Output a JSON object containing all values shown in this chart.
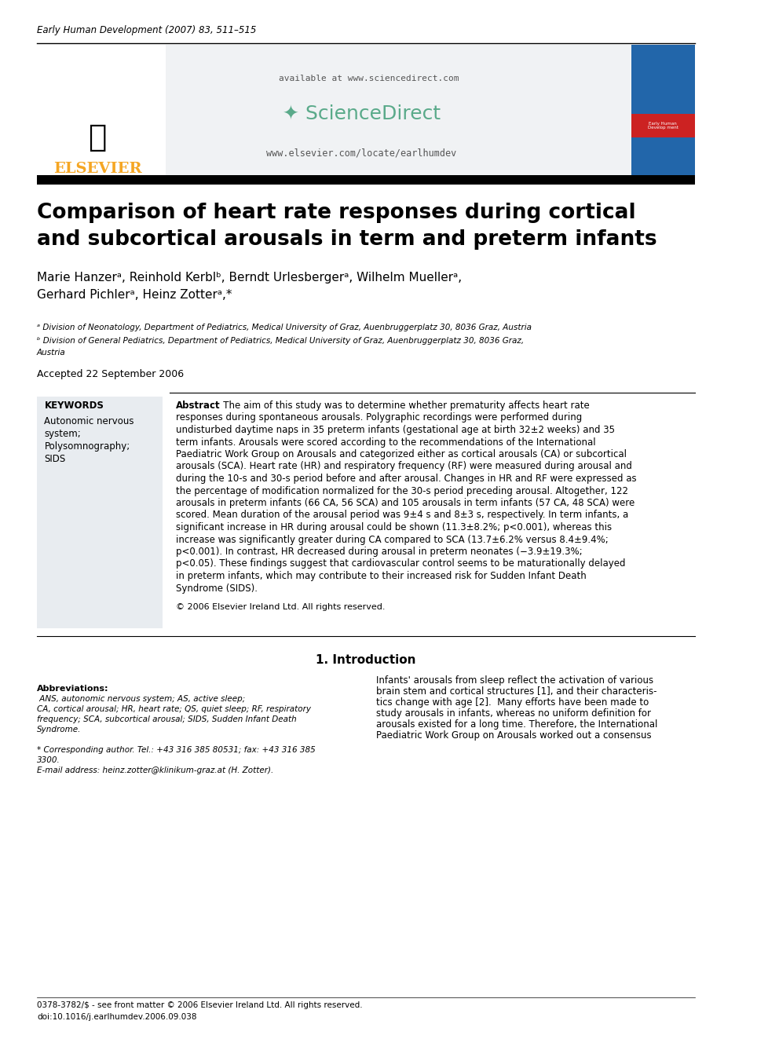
{
  "journal_line": "Early Human Development (2007) 83, 511–515",
  "available_text": "available at www.sciencedirect.com",
  "sciencedirect_text": "ScienceDirect",
  "elsevier_url": "www.elsevier.com/locate/earlhumdev",
  "elsevier_text": "ELSEVIER",
  "title_line1": "Comparison of heart rate responses during cortical",
  "title_line2": "and subcortical arousals in term and preterm infants",
  "authors": "Marie Hanzerᵃ, Reinhold Kerblᵇ, Berndt Urlesbergerᵃ, Wilhelm Muellerᵃ,",
  "authors2": "Gerhard Pichlerᵃ, Heinz Zotterᵃ,*",
  "affil_a": "ᵃ Division of Neonatology, Department of Pediatrics, Medical University of Graz, Auenbruggerplatz 30, 8036 Graz, Austria",
  "affil_b": "ᵇ Division of General Pediatrics, Department of Pediatrics, Medical University of Graz, Auenbruggerplatz 30, 8036 Graz,",
  "affil_b2": "Austria",
  "accepted": "Accepted 22 September 2006",
  "keywords_title": "KEYWORDS",
  "keywords": "Autonomic nervous\nsystem;\nPolysomnography;\nSIDS",
  "abstract_title": "Abstract",
  "abstract_text": "   The aim of this study was to determine whether prematurity affects heart rate responses during spontaneous arousals. Polygraphic recordings were performed during undisturbed daytime naps in 35 preterm infants (gestational age at birth 32±2 weeks) and 35 term infants. Arousals were scored according to the recommendations of the International Paediatric Work Group on Arousals and categorized either as cortical arousals (CA) or subcortical arousals (SCA). Heart rate (HR) and respiratory frequency (RF) were measured during arousal and during the 10-s and 30-s period before and after arousal. Changes in HR and RF were expressed as the percentage of modification normalized for the 30-s period preceding arousal. Altogether, 122 arousals in preterm infants (66 CA, 56 SCA) and 105 arousals in term infants (57 CA, 48 SCA) were scored. Mean duration of the arousal period was 9±4 s and 8±3 s, respectively. In term infants, a significant increase in HR during arousal could be shown (11.3±8.2%; p<0.001), whereas this increase was significantly greater during CA compared to SCA (13.7±6.2% versus 8.4±9.4%; p<0.001). In contrast, HR decreased during arousal in preterm neonates (−3.9±19.3%; p<0.05). These findings suggest that cardiovascular control seems to be maturationally delayed in preterm infants, which may contribute to their increased risk for Sudden Infant Death Syndrome (SIDS).",
  "copyright": "© 2006 Elsevier Ireland Ltd. All rights reserved.",
  "section_intro": "1. Introduction",
  "intro_text1": "Infants' arousals from sleep reflect the activation of various brain stem and cortical structures [1], and their characteristics change with age [2].  Many efforts have been made to study arousals in infants, whereas no uniform definition for arousals existed for a long time. Therefore, the International Paediatric Work Group on Arousals worked out a consensus",
  "footer_abbrev": "Abbreviations: ANS, autonomic nervous system; AS, active sleep; CA, cortical arousal; HR, heart rate; QS, quiet sleep; RF, respiratory frequency; SCA, subcortical arousal; SIDS, Sudden Infant Death Syndrome.",
  "footer_corr": "* Corresponding author. Tel.: +43 316 385 80531; fax: +43 316 385 3300.",
  "footer_email": "E-mail address: heinz.zotter@klinikum-graz.at (H. Zotter).",
  "footer_issn": "0378-3782/$ - see front matter © 2006 Elsevier Ireland Ltd. All rights reserved.",
  "footer_doi": "doi:10.1016/j.earlhumdev.2006.09.038",
  "bg_color": "#ffffff",
  "header_bg": "#f0f0f0",
  "elsevier_color": "#f5a623",
  "sciencedirect_green": "#5aaa46",
  "sciencedirect_teal": "#5aaa8a",
  "keyword_box_color": "#e8e8e8"
}
